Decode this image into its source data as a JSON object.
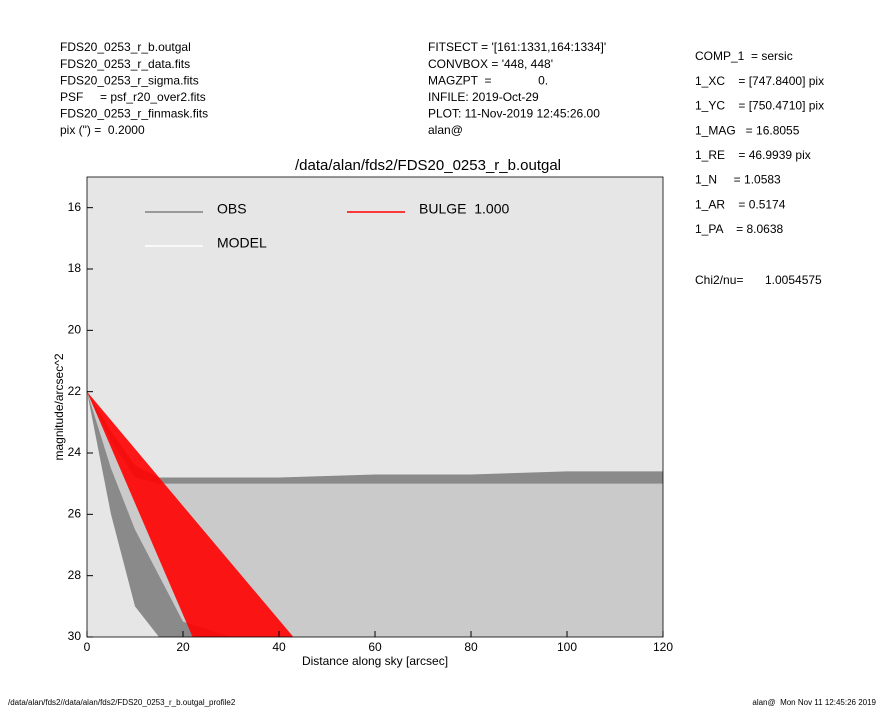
{
  "header": {
    "left": [
      "FDS20_0253_r_b.outgal",
      "FDS20_0253_r_data.fits",
      "FDS20_0253_r_sigma.fits",
      "PSF     = psf_r20_over2.fits",
      "FDS20_0253_r_finmask.fits",
      "pix (\") =  0.2000"
    ],
    "middle": [
      "FITSECT = '[161:1331,164:1334]'",
      "CONVBOX = '448, 448'",
      "MAGZPT  =              0.",
      "INFILE: 2019-Oct-29",
      "PLOT: 11-Nov-2019 12:45:26.00",
      "alan@"
    ],
    "right": [
      "COMP_1  = sersic",
      "1_XC    = [747.8400] pix",
      "1_YC    = [750.4710] pix",
      "1_MAG   = 16.8055",
      "1_RE    = 46.9939 pix",
      "1_N     = 1.0583",
      "1_AR    = 0.5174",
      "1_PA    = 8.0638"
    ],
    "chi_label": "Chi2/nu=",
    "chi_value": "1.0054575"
  },
  "footer": {
    "left": "/data/alan/fds2//data/alan/fds2/FDS20_0253_r_b.outgal_profile2",
    "right": "alan@  Mon Nov 11 12:45:26 2019"
  },
  "chart_data": {
    "type": "band",
    "title": "/data/alan/fds2/FDS20_0253_r_b.outgal",
    "x_label": "Distance along sky [arcsec]",
    "y_label": "magnitude/arcsec^2",
    "xlim": [
      0,
      120
    ],
    "ylim": [
      15,
      30
    ],
    "y_inverted": true,
    "xticks": [
      0,
      20,
      40,
      60,
      80,
      100,
      120
    ],
    "yticks": [
      16,
      18,
      20,
      22,
      24,
      26,
      28,
      30
    ],
    "background": "#e6e6e6",
    "series": [
      {
        "name": "OBS",
        "color": "#808080",
        "x": [
          0,
          5,
          10,
          15,
          20,
          30,
          40,
          60,
          80,
          100,
          120
        ],
        "y_top": [
          22,
          23.3,
          24.4,
          24.8,
          24.8,
          24.8,
          24.8,
          24.7,
          24.7,
          24.6,
          24.6
        ],
        "y_bottom": [
          22,
          26,
          29,
          30,
          30,
          30,
          30,
          30,
          30,
          30,
          30
        ]
      },
      {
        "name": "MODEL",
        "color": "#ffffff",
        "x": [
          0,
          5,
          10,
          15,
          20,
          30,
          40,
          60,
          80,
          100,
          120
        ],
        "y_top": [
          22,
          23.6,
          24.8,
          25,
          25,
          25,
          25,
          25,
          25,
          25,
          25
        ],
        "y_bottom": [
          22,
          24.5,
          26.5,
          28,
          29.5,
          30,
          30,
          30,
          30,
          30,
          30
        ]
      },
      {
        "name": "BULGE  1.000",
        "color": "#ff0000",
        "x": [
          0,
          22,
          43
        ],
        "y_top": [
          22,
          26.1,
          30
        ],
        "y_bottom": [
          22,
          30,
          30
        ]
      }
    ]
  }
}
